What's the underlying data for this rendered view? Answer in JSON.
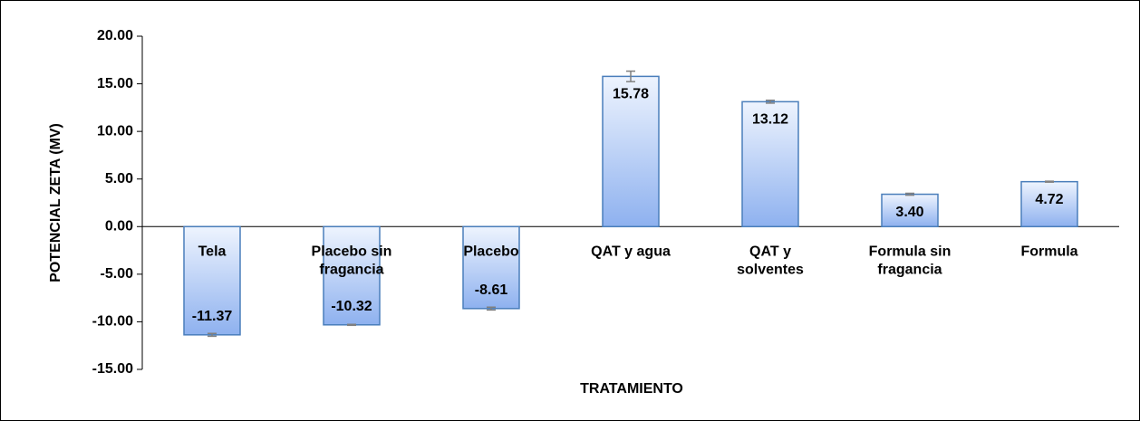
{
  "chart_data": {
    "type": "bar",
    "categories": [
      "Tela",
      "Placebo sin fragancia",
      "Placebo",
      "QAT y agua",
      "QAT y solventes",
      "Formula sin fragancia",
      "Formula"
    ],
    "values": [
      -11.37,
      -10.32,
      -8.61,
      15.78,
      13.12,
      3.4,
      4.72
    ],
    "value_labels": [
      "-11.37",
      "-10.32",
      "-8.61",
      "15.78",
      "13.12",
      "3.40",
      "4.72"
    ],
    "errors": [
      0.15,
      0.05,
      0.15,
      0.55,
      0.15,
      0.1,
      0.05
    ],
    "color": "#4a7ebb",
    "ylim": [
      -15,
      20
    ],
    "yticks": [
      {
        "value": -15,
        "label": "-15.00"
      },
      {
        "value": -10,
        "label": "-10.00"
      },
      {
        "value": -5,
        "label": "-5.00"
      },
      {
        "value": 0,
        "label": "0.00"
      },
      {
        "value": 5,
        "label": "5.00"
      },
      {
        "value": 10,
        "label": "10.00"
      },
      {
        "value": 15,
        "label": "15.00"
      },
      {
        "value": 20,
        "label": "20.00"
      }
    ],
    "xlabel": "TRATAMIENTO",
    "ylabel": "POTENCIAL ZETA (MV)"
  }
}
